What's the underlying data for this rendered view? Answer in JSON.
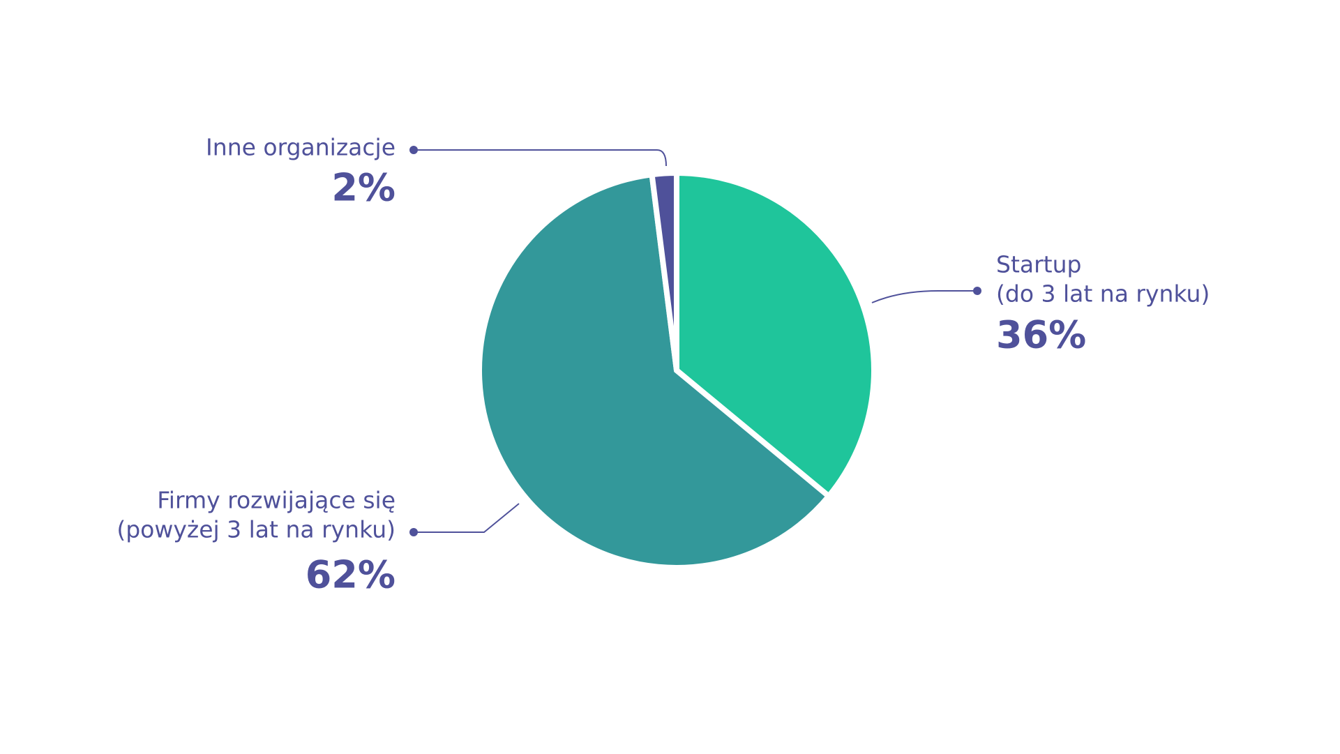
{
  "chart_data": {
    "type": "pie",
    "categories": [
      [
        "Startup",
        "(do 3 lat na rynku)"
      ],
      [
        "Firmy rozwijające się",
        "(powyżej 3 lat na rynku)"
      ],
      [
        "Inne organizacje"
      ]
    ],
    "values": [
      36,
      62,
      2
    ],
    "value_labels": [
      "36%",
      "62%",
      "2%"
    ],
    "colors": [
      "#1fc59b",
      "#33989a",
      "#4f519a"
    ]
  }
}
